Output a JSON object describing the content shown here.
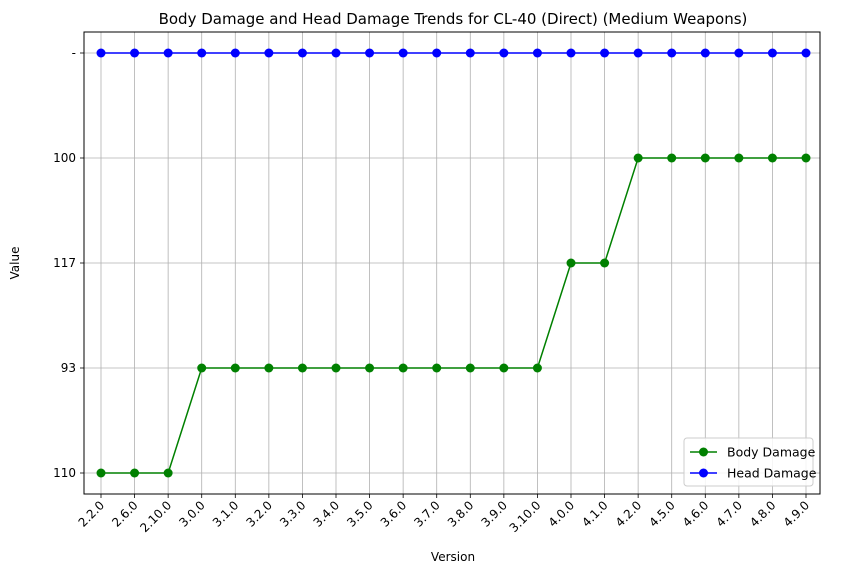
{
  "chart_data": {
    "type": "line",
    "title": "Body Damage and Head Damage Trends for CL-40 (Direct) (Medium Weapons)",
    "xlabel": "Version",
    "ylabel": "Value",
    "grid": true,
    "legend_position": "lower-right",
    "categories": [
      "2.2.0",
      "2.6.0",
      "2.10.0",
      "3.0.0",
      "3.1.0",
      "3.2.0",
      "3.3.0",
      "3.4.0",
      "3.5.0",
      "3.6.0",
      "3.7.0",
      "3.8.0",
      "3.9.0",
      "3.10.0",
      "4.0.0",
      "4.1.0",
      "4.2.0",
      "4.5.0",
      "4.6.0",
      "4.7.0",
      "4.8.0",
      "4.9.0"
    ],
    "y_categories": [
      "110",
      "93",
      "117",
      "100",
      "-"
    ],
    "series": [
      {
        "name": "Body Damage",
        "color": "#008000",
        "values": [
          "110",
          "110",
          "110",
          "93",
          "93",
          "93",
          "93",
          "93",
          "93",
          "93",
          "93",
          "93",
          "93",
          "93",
          "117",
          "117",
          "100",
          "100",
          "100",
          "100",
          "100",
          "100"
        ]
      },
      {
        "name": "Head Damage",
        "color": "#0000ff",
        "values": [
          "-",
          "-",
          "-",
          "-",
          "-",
          "-",
          "-",
          "-",
          "-",
          "-",
          "-",
          "-",
          "-",
          "-",
          "-",
          "-",
          "-",
          "-",
          "-",
          "-",
          "-",
          "-"
        ]
      }
    ]
  }
}
